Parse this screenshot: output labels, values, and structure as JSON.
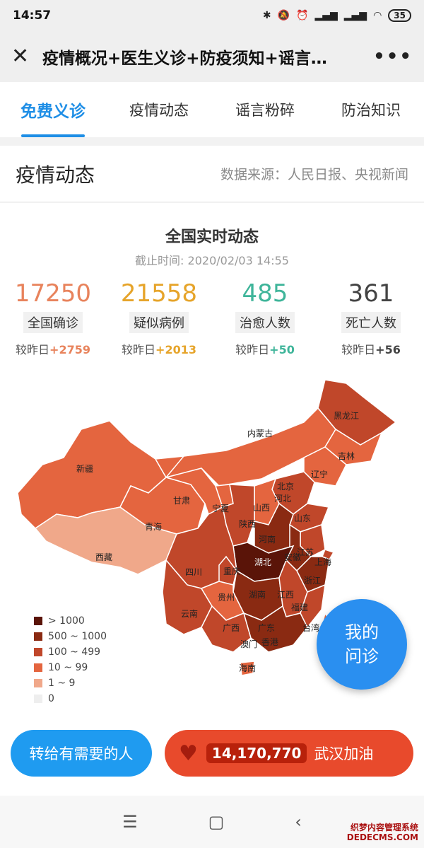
{
  "statusbar": {
    "time": "14:57",
    "battery": "35"
  },
  "header": {
    "title": "疫情概况+医生义诊+防疫须知+谣言…"
  },
  "tabs": [
    {
      "label": "免费义诊",
      "active": true
    },
    {
      "label": "疫情动态",
      "active": false
    },
    {
      "label": "谣言粉碎",
      "active": false
    },
    {
      "label": "防治知识",
      "active": false
    }
  ],
  "section": {
    "title": "疫情动态",
    "source": "数据来源：人民日报、央视新闻"
  },
  "national": {
    "title": "全国实时动态",
    "time": "截止时间: 2020/02/03 14:55",
    "stats": [
      {
        "value": "17250",
        "label": "全国确诊",
        "change_prefix": "较昨日",
        "change": "+2759",
        "color": "#e8835c"
      },
      {
        "value": "21558",
        "label": "疑似病例",
        "change_prefix": "较昨日",
        "change": "+2013",
        "color": "#e6a42a"
      },
      {
        "value": "485",
        "label": "治愈人数",
        "change_prefix": "较昨日",
        "change": "+50",
        "color": "#3fb59a"
      },
      {
        "value": "361",
        "label": "死亡人数",
        "change_prefix": "较昨日",
        "change": "+56",
        "color": "#444444"
      }
    ]
  },
  "map": {
    "labels": {
      "heilongjiang": "黑龙江",
      "jilin": "吉林",
      "neimenggu": "内蒙古",
      "liaoning": "辽宁",
      "beijing": "北京",
      "xinjiang": "新疆",
      "gansu": "甘肃",
      "ningxia": "宁夏",
      "shanxi": "山西",
      "hebei": "河北",
      "shandong": "山东",
      "qinghai": "青海",
      "shaanxi": "陕西",
      "henan": "河南",
      "jiangsu": "江苏",
      "anhui": "安徽",
      "shanghai": "上海",
      "xizang": "西藏",
      "sichuan": "四川",
      "chongqing": "重庆",
      "hubei": "湖北",
      "zhejiang": "浙江",
      "yunnan": "云南",
      "guizhou": "贵州",
      "hunan": "湖南",
      "jiangxi": "江西",
      "fujian": "福建",
      "guangxi": "广西",
      "guangdong": "广东",
      "taiwan": "台湾",
      "hongkong": "香港",
      "macau": "澳门",
      "hainan": "海南"
    },
    "legend": [
      {
        "label": "> 1000",
        "color": "#5a1408"
      },
      {
        "label": "500 ~ 1000",
        "color": "#8a2a12"
      },
      {
        "label": "100 ~ 499",
        "color": "#c0472a"
      },
      {
        "label": "10 ~ 99",
        "color": "#e4653f"
      },
      {
        "label": "1 ~ 9",
        "color": "#f0a88a"
      },
      {
        "label": "0",
        "color": "#eeeeee"
      }
    ]
  },
  "ask_button": {
    "line1": "我的",
    "line2": "问诊"
  },
  "actions": {
    "forward_label": "转给有需要的人",
    "cheer_count": "14,170,770",
    "cheer_label": "武汉加油"
  },
  "watermark": {
    "line1": "织梦内容管理系统",
    "line2": "DEDECMS.COM"
  }
}
